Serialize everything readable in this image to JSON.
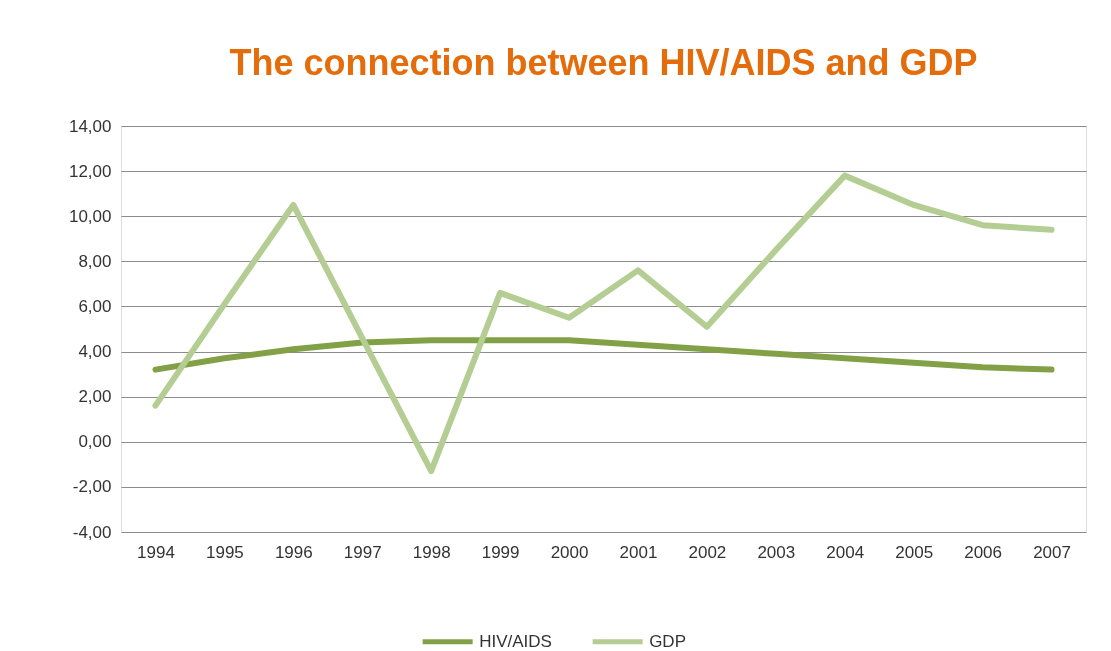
{
  "chart_data": {
    "type": "line",
    "title": "The connection between HIV/AIDS and GDP",
    "categories": [
      "1994",
      "1995",
      "1996",
      "1997",
      "1998",
      "1999",
      "2000",
      "2001",
      "2002",
      "2003",
      "2004",
      "2005",
      "2006",
      "2007"
    ],
    "series": [
      {
        "name": "HIV/AIDS",
        "color": "#82a046",
        "values": [
          3.2,
          3.7,
          4.1,
          4.4,
          4.5,
          4.5,
          4.5,
          4.3,
          4.1,
          3.9,
          3.7,
          3.5,
          3.3,
          3.2
        ]
      },
      {
        "name": "GDP",
        "color": "#b3cd93",
        "values": [
          1.6,
          6.1,
          10.5,
          4.6,
          -1.3,
          6.6,
          5.5,
          7.6,
          5.1,
          8.5,
          11.8,
          10.5,
          9.6,
          9.4
        ]
      }
    ],
    "ylim": [
      -4,
      14
    ],
    "yticks": [
      {
        "value": -4,
        "label": "-4,00"
      },
      {
        "value": -2,
        "label": "-2,00"
      },
      {
        "value": 0,
        "label": "0,00"
      },
      {
        "value": 2,
        "label": "2,00"
      },
      {
        "value": 4,
        "label": "4,00"
      },
      {
        "value": 6,
        "label": "6,00"
      },
      {
        "value": 8,
        "label": "8,00"
      },
      {
        "value": 10,
        "label": "10,00"
      },
      {
        "value": 12,
        "label": "12,00"
      },
      {
        "value": 14,
        "label": "14,00"
      }
    ],
    "grid": "y",
    "legend": "bottom",
    "marker": "none",
    "line_style": "solid"
  }
}
